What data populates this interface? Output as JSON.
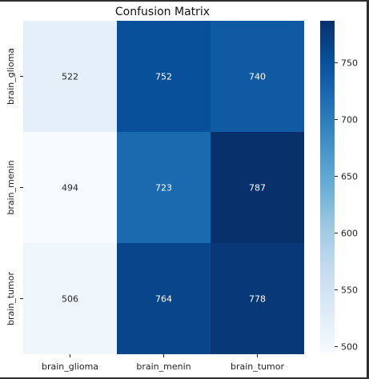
{
  "chart_data": {
    "type": "heatmap",
    "title": "Confusion Matrix",
    "xlabel": "",
    "ylabel": "",
    "x_categories": [
      "brain_glioma",
      "brain_menin",
      "brain_tumor"
    ],
    "y_categories": [
      "brain_glioma",
      "brain_menin",
      "brain_tumor"
    ],
    "values": [
      [
        522,
        752,
        740
      ],
      [
        494,
        723,
        787
      ],
      [
        506,
        764,
        778
      ]
    ],
    "colormap": "Blues",
    "colorbar": {
      "range": [
        494,
        787
      ],
      "ticks": [
        500,
        550,
        600,
        650,
        700,
        750
      ]
    },
    "grid": false
  }
}
